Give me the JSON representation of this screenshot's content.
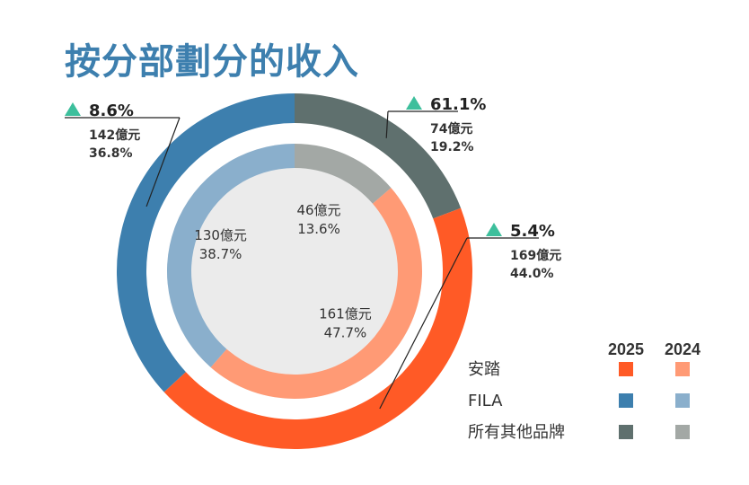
{
  "title": "按分部劃分的收入",
  "chart_data": {
    "type": "pie",
    "subtype": "nested-donut",
    "unit": "億元",
    "legend_placement": "bottom-right",
    "years": [
      "2025",
      "2024"
    ],
    "categories": [
      "安踏",
      "FILA",
      "所有其他品牌"
    ],
    "series": [
      {
        "name": "2025",
        "ring": "outer",
        "values": [
          169,
          142,
          74
        ],
        "value_labels": [
          "169億元",
          "142億元",
          "74億元"
        ],
        "percent_labels": [
          "44.0%",
          "36.8%",
          "19.2%"
        ],
        "growth_labels": [
          "5.4%",
          "8.6%",
          "61.1%"
        ],
        "colors": [
          "#ff5a26",
          "#3d7fae",
          "#5f706e"
        ]
      },
      {
        "name": "2024",
        "ring": "inner",
        "values": [
          161,
          130,
          46
        ],
        "value_labels": [
          "161億元",
          "130億元",
          "46億元"
        ],
        "percent_labels": [
          "47.7%",
          "38.7%",
          "13.6%"
        ],
        "colors": [
          "#ff9a75",
          "#8aafcc",
          "#a3a8a5"
        ]
      }
    ],
    "center_color": "#ebebeb",
    "growth_marker_color": "#3dbf9c"
  }
}
